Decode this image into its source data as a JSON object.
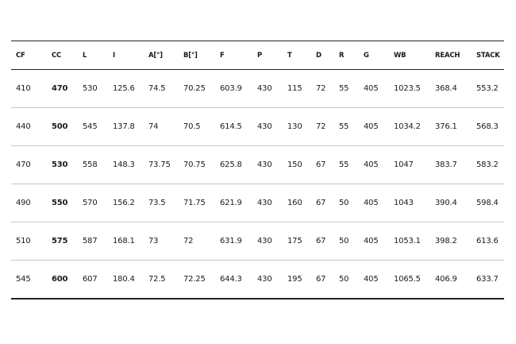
{
  "table": {
    "headers": [
      "CF",
      "CC",
      "L",
      "I",
      "A[°]",
      "B[°]",
      "F",
      "P",
      "T",
      "D",
      "R",
      "G",
      "WB",
      "REACH",
      "STACK"
    ],
    "rows": [
      [
        "410",
        "470",
        "530",
        "125.6",
        "74.5",
        "70.25",
        "603.9",
        "430",
        "115",
        "72",
        "55",
        "405",
        "1023.5",
        "368.4",
        "553.2"
      ],
      [
        "440",
        "500",
        "545",
        "137.8",
        "74",
        "70.5",
        "614.5",
        "430",
        "130",
        "72",
        "55",
        "405",
        "1034.2",
        "376.1",
        "568.3"
      ],
      [
        "470",
        "530",
        "558",
        "148.3",
        "73.75",
        "70.75",
        "625.8",
        "430",
        "150",
        "67",
        "55",
        "405",
        "1047",
        "383.7",
        "583.2"
      ],
      [
        "490",
        "550",
        "570",
        "156.2",
        "73.5",
        "71.75",
        "621.9",
        "430",
        "160",
        "67",
        "50",
        "405",
        "1043",
        "390.4",
        "598.4"
      ],
      [
        "510",
        "575",
        "587",
        "168.1",
        "73",
        "72",
        "631.9",
        "430",
        "175",
        "67",
        "50",
        "405",
        "1053.1",
        "398.2",
        "613.6"
      ],
      [
        "545",
        "600",
        "607",
        "180.4",
        "72.5",
        "72.25",
        "644.3",
        "430",
        "195",
        "67",
        "50",
        "405",
        "1065.5",
        "406.9",
        "633.7"
      ]
    ]
  }
}
